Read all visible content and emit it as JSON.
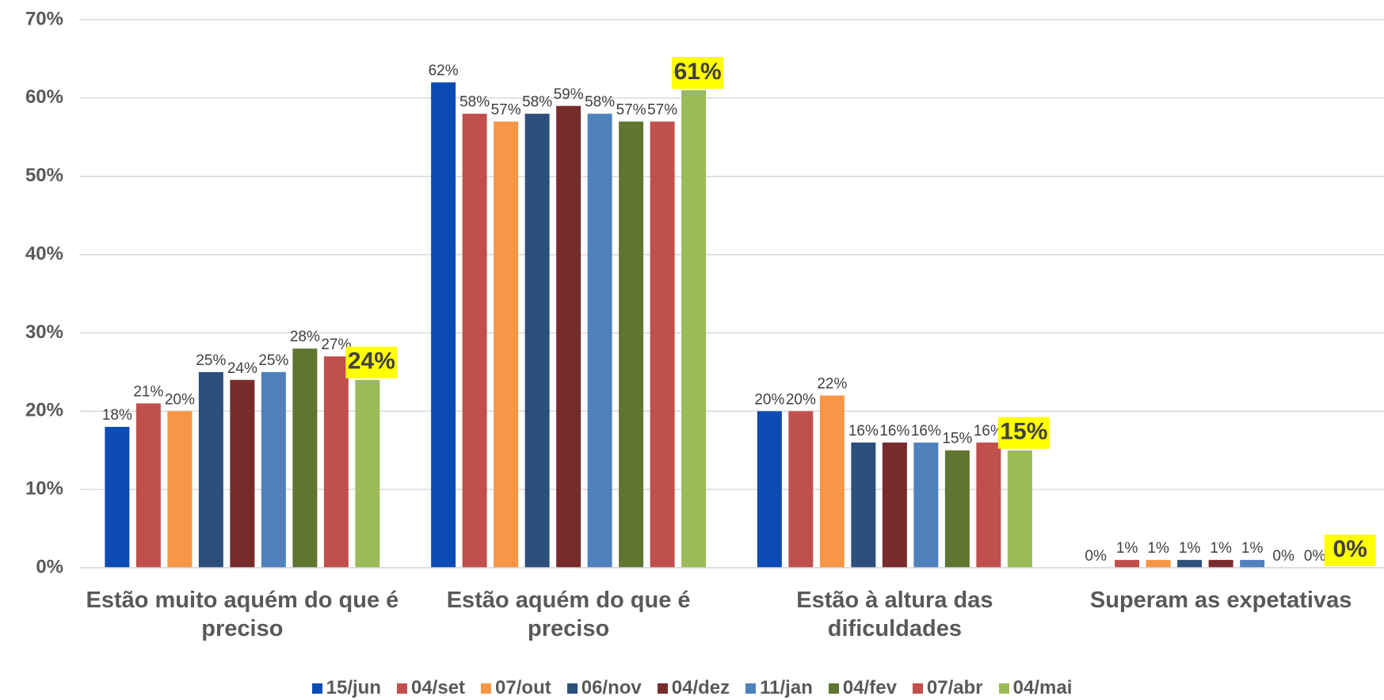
{
  "chart_data": {
    "type": "bar",
    "categories": [
      "Estão muito aquém do que é preciso",
      "Estão aquém do que é preciso",
      "Estão à altura das dificuldades",
      "Superam as expetativas"
    ],
    "series": [
      {
        "name": "15/jun",
        "color": "#0b4bb3",
        "values": [
          18,
          62,
          20,
          0
        ],
        "value_labels": [
          "18%",
          "62%",
          "20%",
          "0%"
        ]
      },
      {
        "name": "04/set",
        "color": "#c0504d",
        "values": [
          21,
          58,
          20,
          1
        ],
        "value_labels": [
          "21%",
          "58%",
          "20%",
          "1%"
        ]
      },
      {
        "name": "07/out",
        "color": "#f79646",
        "values": [
          20,
          57,
          22,
          1
        ],
        "value_labels": [
          "20%",
          "57%",
          "22%",
          "1%"
        ]
      },
      {
        "name": "06/nov",
        "color": "#2c4f7c",
        "values": [
          25,
          58,
          16,
          1
        ],
        "value_labels": [
          "25%",
          "58%",
          "16%",
          "1%"
        ]
      },
      {
        "name": "04/dez",
        "color": "#772c2c",
        "values": [
          24,
          59,
          16,
          1
        ],
        "value_labels": [
          "24%",
          "59%",
          "16%",
          "1%"
        ]
      },
      {
        "name": "11/jan",
        "color": "#4f81bd",
        "values": [
          25,
          58,
          16,
          1
        ],
        "value_labels": [
          "25%",
          "58%",
          "16%",
          "1%"
        ]
      },
      {
        "name": "04/fev",
        "color": "#5f7530",
        "values": [
          28,
          57,
          15,
          0
        ],
        "value_labels": [
          "28%",
          "57%",
          "15%",
          "0%"
        ]
      },
      {
        "name": "07/abr",
        "color": "#c0504d",
        "values": [
          27,
          57,
          16,
          0
        ],
        "value_labels": [
          "27%",
          "57%",
          "16%",
          "0%"
        ]
      },
      {
        "name": "04/mai",
        "color": "#9bbb59",
        "values": [
          24,
          61,
          15,
          0
        ],
        "value_labels": [
          "24%",
          "61%",
          "15%",
          "0%"
        ]
      }
    ],
    "ylim": [
      0,
      70
    ],
    "yticks": [
      {
        "value": 0,
        "label": "0%"
      },
      {
        "value": 10,
        "label": "10%"
      },
      {
        "value": 20,
        "label": "20%"
      },
      {
        "value": 30,
        "label": "30%"
      },
      {
        "value": 40,
        "label": "40%"
      },
      {
        "value": 50,
        "label": "50%"
      },
      {
        "value": 60,
        "label": "60%"
      },
      {
        "value": 70,
        "label": "70%"
      }
    ],
    "grid": true
  }
}
